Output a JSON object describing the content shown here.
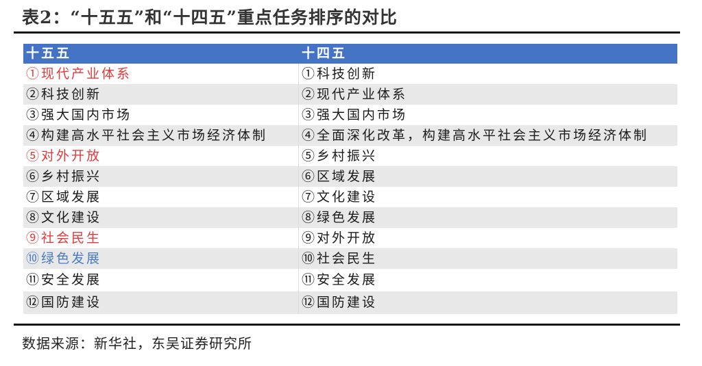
{
  "title": "表2：“十五五”和“十四五”重点任务排序的对比",
  "colors": {
    "header_bg": "#4472c4",
    "highlight_red": "#e03a3a",
    "highlight_blue": "#4a7cc4",
    "row_alt": "#e8e8e8"
  },
  "table": {
    "headers": [
      "十五五",
      "十四五"
    ],
    "rows": [
      {
        "c1": "①现代产业体系",
        "c1_color": "red",
        "c2": "①科技创新"
      },
      {
        "c1": "②科技创新",
        "c2": "②现代产业体系"
      },
      {
        "c1": "③强大国内市场",
        "c2": "③强大国内市场"
      },
      {
        "c1": "④构建高水平社会主义市场经济体制",
        "c2": "④全面深化改革，构建高水平社会主义市场经济体制"
      },
      {
        "c1": "⑤对外开放",
        "c1_color": "red",
        "c2": "⑤乡村振兴"
      },
      {
        "c1": "⑥乡村振兴",
        "c2": "⑥区域发展"
      },
      {
        "c1": "⑦区域发展",
        "c2": "⑦文化建设"
      },
      {
        "c1": "⑧文化建设",
        "c2": "⑧绿色发展"
      },
      {
        "c1": "⑨社会民生",
        "c1_color": "red",
        "c2": "⑨对外开放"
      },
      {
        "c1": "⑩绿色发展",
        "c1_color": "blue",
        "c2": "⑩社会民生"
      },
      {
        "c1": "⑪安全发展",
        "c2": "⑪安全发展"
      },
      {
        "c1": "⑫国防建设",
        "c2": "⑫国防建设"
      }
    ]
  },
  "source": "数据来源：新华社，东吴证券研究所"
}
